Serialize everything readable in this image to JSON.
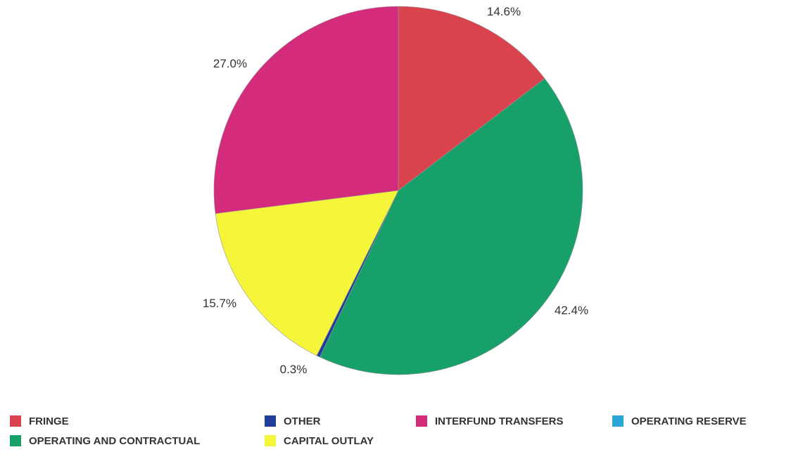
{
  "chart_data": {
    "type": "pie",
    "legend_position": "bottom",
    "slices": [
      {
        "name": "FRINGE",
        "value": 14.6,
        "label": "14.6%",
        "color": "#d9434e"
      },
      {
        "name": "OPERATING AND CONTRACTUAL",
        "value": 42.4,
        "label": "42.4%",
        "color": "#18a06a"
      },
      {
        "name": "OTHER",
        "value": 0.3,
        "label": "0.3%",
        "color": "#1f3f9a"
      },
      {
        "name": "CAPITAL OUTLAY",
        "value": 15.7,
        "label": "15.7%",
        "color": "#f5f53a"
      },
      {
        "name": "INTERFUND TRANSFERS",
        "value": 27.0,
        "label": "27.0%",
        "color": "#d52b7c"
      },
      {
        "name": "OPERATING RESERVE",
        "value": 0.0,
        "label": "",
        "color": "#2aa7d6"
      }
    ],
    "legend": {
      "rows": [
        [
          "FRINGE",
          "OTHER",
          "INTERFUND TRANSFERS",
          "OPERATING RESERVE"
        ],
        [
          "OPERATING AND CONTRACTUAL",
          "CAPITAL OUTLAY"
        ]
      ]
    }
  }
}
